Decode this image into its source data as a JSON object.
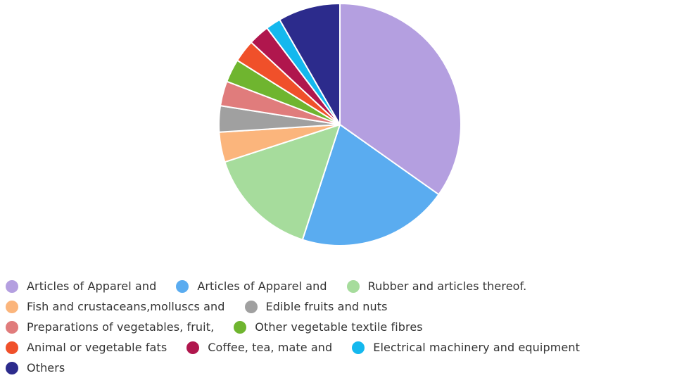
{
  "chart_data": {
    "type": "pie",
    "title": "",
    "start_angle_deg": 0,
    "direction": "clockwise",
    "legend_position": "bottom",
    "slices": [
      {
        "label": "Articles of Apparel and",
        "value": 34.8,
        "color": "#b49fe0"
      },
      {
        "label": "Articles of Apparel and",
        "value": 20.2,
        "color": "#5aacf0"
      },
      {
        "label": "Rubber and articles thereof.",
        "value": 15.0,
        "color": "#a6dc9c"
      },
      {
        "label": "Fish and crustaceans,molluscs and",
        "value": 4.0,
        "color": "#fbb57c"
      },
      {
        "label": "Edible fruits and nuts",
        "value": 3.5,
        "color": "#a0a0a0"
      },
      {
        "label": "Preparations of vegetables, fruit,",
        "value": 3.3,
        "color": "#e07c7c"
      },
      {
        "label": "Other vegetable textile fibres",
        "value": 3.1,
        "color": "#6fb52f"
      },
      {
        "label": "Animal or vegetable fats",
        "value": 3.0,
        "color": "#f0502a"
      },
      {
        "label": "Coffee, tea, mate and",
        "value": 2.8,
        "color": "#b0164d"
      },
      {
        "label": "Electrical machinery and equipment",
        "value": 2.0,
        "color": "#14b8ee"
      },
      {
        "label": "Others",
        "value": 8.3,
        "color": "#2c2b8c"
      }
    ]
  },
  "legend_rows": [
    [
      0,
      1,
      2
    ],
    [
      3,
      4
    ],
    [
      5,
      6
    ],
    [
      7,
      8,
      9
    ],
    [
      10
    ]
  ]
}
